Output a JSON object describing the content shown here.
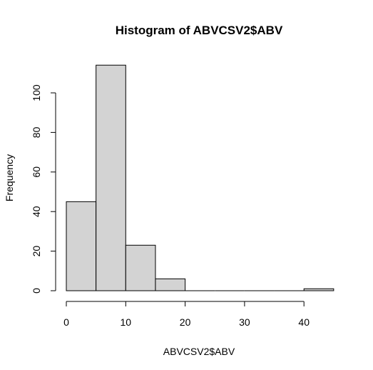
{
  "chart_data": {
    "type": "bar",
    "title": "Histogram of ABVCSV2$ABV",
    "xlabel": "ABVCSV2$ABV",
    "ylabel": "Frequency",
    "bins": [
      {
        "start": 0,
        "end": 5,
        "count": 45
      },
      {
        "start": 5,
        "end": 10,
        "count": 114
      },
      {
        "start": 10,
        "end": 15,
        "count": 23
      },
      {
        "start": 15,
        "end": 20,
        "count": 6
      },
      {
        "start": 20,
        "end": 25,
        "count": 0
      },
      {
        "start": 25,
        "end": 30,
        "count": 0
      },
      {
        "start": 30,
        "end": 35,
        "count": 0
      },
      {
        "start": 35,
        "end": 40,
        "count": 0
      },
      {
        "start": 40,
        "end": 45,
        "count": 1
      }
    ],
    "xlim": [
      0,
      45
    ],
    "ylim": [
      0,
      114
    ],
    "x_ticks": [
      0,
      10,
      20,
      30,
      40
    ],
    "x_tick_labels": [
      "0",
      "10",
      "20",
      "30",
      "40"
    ],
    "y_ticks": [
      0,
      20,
      40,
      60,
      80,
      100
    ],
    "y_tick_labels": [
      "0",
      "20",
      "40",
      "60",
      "80",
      "100"
    ],
    "grid": false,
    "colors": {
      "bar_fill": "#d3d3d3",
      "bar_stroke": "#000000",
      "axis": "#000000",
      "background": "#ffffff"
    }
  }
}
